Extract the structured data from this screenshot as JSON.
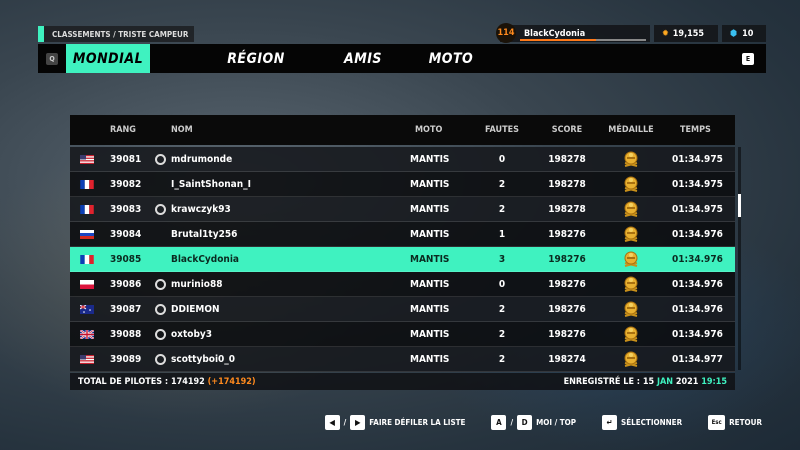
{
  "breadcrumb": "CLASSEMENTS / TRISTE CAMPEUR",
  "player": {
    "level": "114",
    "name": "BlackCydonia",
    "xp_progress": 0.6,
    "currency": "19,155",
    "tokens": "10"
  },
  "tabs": {
    "prev_key": "Q",
    "next_key": "E",
    "items": [
      {
        "label": "MONDIAL",
        "active": true
      },
      {
        "label": "RÉGION"
      },
      {
        "label": "AMIS"
      },
      {
        "label": "MOTO"
      }
    ]
  },
  "columns": {
    "rank": "RANG",
    "name": "NOM",
    "moto": "MOTO",
    "faults": "FAUTES",
    "score": "SCORE",
    "medal": "MÉDAILLE",
    "time": "TEMPS"
  },
  "rows": [
    {
      "flag": "us",
      "rank": "39081",
      "name": "mdrumonde",
      "uplay": true,
      "moto": "MANTIS",
      "faults": "0",
      "score": "198278",
      "medal": "gold",
      "time": "01:34.975"
    },
    {
      "flag": "fr",
      "rank": "39082",
      "name": "I_SaintShonan_I",
      "uplay": false,
      "moto": "MANTIS",
      "faults": "2",
      "score": "198278",
      "medal": "gold",
      "time": "01:34.975"
    },
    {
      "flag": "fr",
      "rank": "39083",
      "name": "krawczyk93",
      "uplay": true,
      "moto": "MANTIS",
      "faults": "2",
      "score": "198278",
      "medal": "gold",
      "time": "01:34.975"
    },
    {
      "flag": "ru",
      "rank": "39084",
      "name": "Brutal1ty256",
      "uplay": false,
      "moto": "MANTIS",
      "faults": "1",
      "score": "198276",
      "medal": "gold",
      "time": "01:34.976"
    },
    {
      "flag": "fr",
      "rank": "39085",
      "name": "BlackCydonia",
      "uplay": false,
      "moto": "MANTIS",
      "faults": "3",
      "score": "198276",
      "medal": "gold",
      "time": "01:34.976",
      "me": true
    },
    {
      "flag": "pl",
      "rank": "39086",
      "name": "murinio88",
      "uplay": true,
      "moto": "MANTIS",
      "faults": "0",
      "score": "198276",
      "medal": "gold",
      "time": "01:34.976"
    },
    {
      "flag": "au",
      "rank": "39087",
      "name": "DDIEMON",
      "uplay": true,
      "moto": "MANTIS",
      "faults": "2",
      "score": "198276",
      "medal": "gold",
      "time": "01:34.976"
    },
    {
      "flag": "gb",
      "rank": "39088",
      "name": "oxtoby3",
      "uplay": true,
      "moto": "MANTIS",
      "faults": "2",
      "score": "198276",
      "medal": "gold",
      "time": "01:34.976"
    },
    {
      "flag": "us",
      "rank": "39089",
      "name": "scottyboi0_0",
      "uplay": true,
      "moto": "MANTIS",
      "faults": "2",
      "score": "198274",
      "medal": "gold",
      "time": "01:34.977"
    }
  ],
  "footer": {
    "total_label": "TOTAL DE PILOTES : 174192",
    "total_delta": "(+174192)",
    "recorded_label": "ENREGISTRÉ LE : 15",
    "recorded_month": "JAN",
    "recorded_year": "2021",
    "recorded_time": "19:15"
  },
  "hints": {
    "scroll_label": "FAIRE DÉFILER LA LISTE",
    "key_a": "A",
    "key_d": "D",
    "me_top_label": "MOI / TOP",
    "select_label": "SÉLECTIONNER",
    "key_esc": "Esc",
    "back_label": "RETOUR",
    "slash": "/"
  },
  "colors": {
    "accent": "#3ff2c0",
    "orange": "#ff8a1e"
  }
}
